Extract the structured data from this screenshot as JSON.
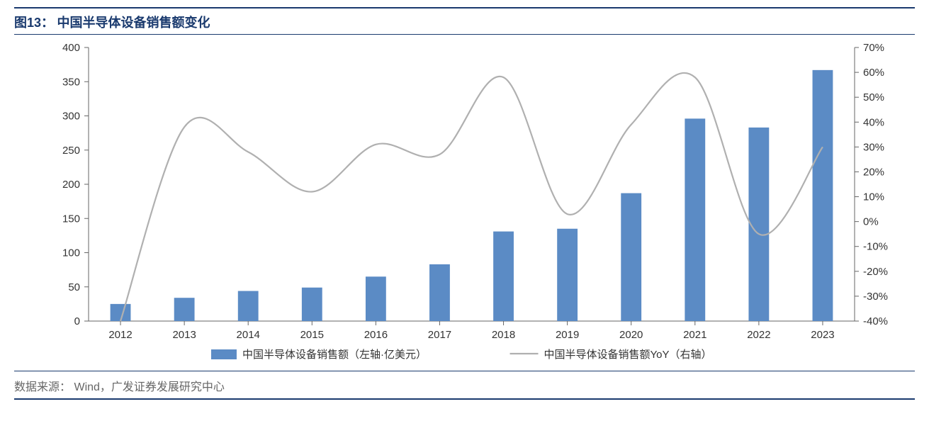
{
  "title_prefix": "图13：",
  "title_text": "中国半导体设备销售额变化",
  "source_label": "数据来源：",
  "source_text": "Wind，广发证券发展研究中心",
  "chart": {
    "type": "bar+line",
    "categories": [
      "2012",
      "2013",
      "2014",
      "2015",
      "2016",
      "2017",
      "2018",
      "2019",
      "2020",
      "2021",
      "2022",
      "2023"
    ],
    "bar_series": {
      "name": "中国半导体设备销售额（左轴·亿美元）",
      "values": [
        25,
        34,
        44,
        49,
        65,
        83,
        131,
        135,
        187,
        296,
        283,
        367
      ],
      "color": "#5b8bc5"
    },
    "line_series": {
      "name": "中国半导体设备销售额YoY（右轴）",
      "values": [
        null,
        38,
        28,
        12,
        31,
        27,
        58,
        3,
        39,
        58,
        -5,
        30
      ],
      "color": "#b0b0b0"
    },
    "y_left": {
      "min": 0,
      "max": 400,
      "step": 50,
      "label_suffix": ""
    },
    "y_right": {
      "min": -40,
      "max": 70,
      "step": 10,
      "label_suffix": "%"
    },
    "bar_width_ratio": 0.32,
    "line_width": 2.2,
    "tick_color": "#666",
    "axis_color": "#666",
    "bg_color": "#ffffff",
    "title_color": "#1a3a6e",
    "label_fontsize": 15,
    "title_fontsize": 18
  },
  "legend": {
    "bar_swatch_color": "#5b8bc5",
    "line_swatch_color": "#b0b0b0"
  }
}
